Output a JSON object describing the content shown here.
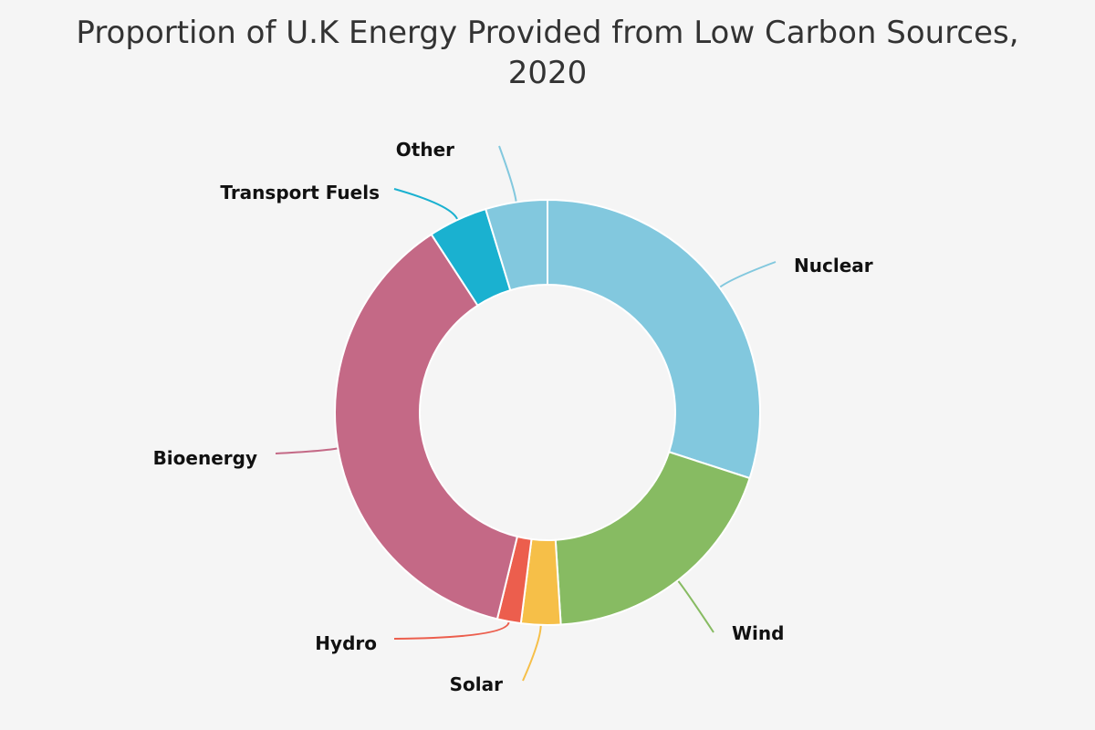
{
  "chart_data": {
    "type": "pie",
    "variant": "donut",
    "title_lines": [
      "Proportion of U.K Energy Provided from Low Carbon Sources,",
      "2020"
    ],
    "legend": "none",
    "slices": [
      {
        "label": "Nuclear",
        "value": 30.0,
        "color": "#82c8de"
      },
      {
        "label": "Wind",
        "value": 19.0,
        "color": "#87bb62"
      },
      {
        "label": "Solar",
        "value": 3.0,
        "color": "#f6bf48"
      },
      {
        "label": "Hydro",
        "value": 1.8,
        "color": "#ec5e4d"
      },
      {
        "label": "Bioenergy",
        "value": 37.0,
        "color": "#c46986"
      },
      {
        "label": "Transport Fuels",
        "value": 4.5,
        "color": "#1ab1d0"
      },
      {
        "label": "Other",
        "value": 4.7,
        "color": "#82c8de"
      }
    ]
  }
}
